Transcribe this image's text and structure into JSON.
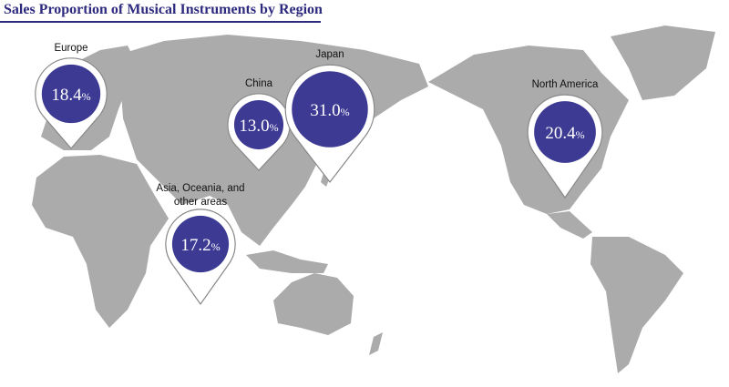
{
  "title": "Sales Proportion of Musical Instruments by Region",
  "regions": [
    {
      "name": "Europe",
      "value": 18.4,
      "unit": "%"
    },
    {
      "name": "China",
      "value": 13.0,
      "value_label": "13.0",
      "unit": "%"
    },
    {
      "name": "Japan",
      "value": 31.0,
      "value_label": "31.0",
      "unit": "%"
    },
    {
      "name": "North America",
      "value": 20.4,
      "unit": "%"
    },
    {
      "name": "Asia, Oceania, and other areas",
      "value": 17.2,
      "unit": "%"
    }
  ]
}
